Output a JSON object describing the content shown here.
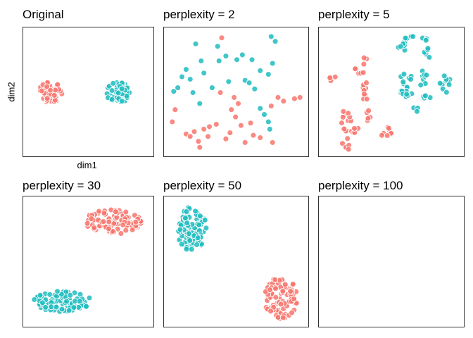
{
  "colors": {
    "group_a": "#F8766D",
    "group_b": "#1FBCC0"
  },
  "chart_data": [
    {
      "type": "scatter",
      "title": "Original",
      "xlabel": "dim1",
      "ylabel": "dim2",
      "xlim": [
        0,
        10
      ],
      "ylim": [
        0,
        10
      ],
      "series": [
        {
          "color": "group_a",
          "clusters": [
            {
              "cx": 1.85,
              "cy": 5.0,
              "rx": 0.95,
              "ry": 0.85,
              "n": 60
            }
          ]
        },
        {
          "color": "group_b",
          "clusters": [
            {
              "cx": 7.3,
              "cy": 5.0,
              "rx": 1.0,
              "ry": 0.9,
              "n": 60
            }
          ]
        }
      ]
    },
    {
      "type": "scatter",
      "title": "perplexity = 2",
      "xlim": [
        0,
        10
      ],
      "ylim": [
        0,
        10
      ],
      "series": [
        {
          "color": "group_a",
          "points": [
            [
              3.9,
              9.5
            ],
            [
              7.5,
              3.9
            ],
            [
              8.0,
              4.6
            ],
            [
              8.4,
              4.3
            ],
            [
              9.6,
              4.6
            ],
            [
              0.5,
              3.6
            ],
            [
              4.6,
              3.6
            ],
            [
              4.9,
              3.0
            ],
            [
              5.3,
              2.3
            ],
            [
              6.0,
              2.5
            ],
            [
              1.3,
              1.6
            ],
            [
              1.9,
              1.8
            ],
            [
              3.0,
              2.2
            ],
            [
              3.5,
              2.4
            ],
            [
              2.2,
              1.0
            ],
            [
              4.2,
              1.2
            ],
            [
              4.5,
              1.7
            ],
            [
              5.6,
              0.9
            ],
            [
              6.7,
              1.3
            ],
            [
              7.6,
              0.9
            ],
            [
              2.3,
              0.5
            ],
            [
              3.8,
              5.0
            ],
            [
              5.1,
              4.1
            ],
            [
              2.9,
              1.4
            ],
            [
              6.2,
              1.5
            ],
            [
              0.3,
              2.6
            ],
            [
              9.2,
              4.5
            ],
            [
              2.6,
              2.0
            ],
            [
              4.8,
              4.6
            ],
            [
              1.6,
              1.4
            ]
          ]
        },
        {
          "color": "group_b",
          "points": [
            [
              2.0,
              9.0
            ],
            [
              3.6,
              8.8
            ],
            [
              7.5,
              9.6
            ],
            [
              7.8,
              9.2
            ],
            [
              2.4,
              7.6
            ],
            [
              3.7,
              7.6
            ],
            [
              5.0,
              7.7
            ],
            [
              6.1,
              7.7
            ],
            [
              1.0,
              6.3
            ],
            [
              1.6,
              6.1
            ],
            [
              2.6,
              6.6
            ],
            [
              5.6,
              6.0
            ],
            [
              7.3,
              6.5
            ],
            [
              7.6,
              7.4
            ],
            [
              0.7,
              5.4
            ],
            [
              3.2,
              5.4
            ],
            [
              4.4,
              5.9
            ],
            [
              5.9,
              5.8
            ],
            [
              1.8,
              5.0
            ],
            [
              2.3,
              4.1
            ],
            [
              6.7,
              3.7
            ],
            [
              7.0,
              3.2
            ],
            [
              7.3,
              2.6
            ],
            [
              0.4,
              5.1
            ],
            [
              4.2,
              8.0
            ],
            [
              5.4,
              8.1
            ],
            [
              6.7,
              6.8
            ],
            [
              6.3,
              5.3
            ],
            [
              1.3,
              6.9
            ],
            [
              7.4,
              2.0
            ]
          ]
        }
      ]
    },
    {
      "type": "scatter",
      "title": "perplexity = 5",
      "xlim": [
        0,
        10
      ],
      "ylim": [
        0,
        10
      ],
      "series": [
        {
          "color": "group_a",
          "clusters": [
            {
              "cx": 0.7,
              "cy": 6.2,
              "rx": 0.35,
              "ry": 0.3,
              "n": 4
            },
            {
              "cx": 2.4,
              "cy": 6.7,
              "rx": 0.6,
              "ry": 0.3,
              "n": 6
            },
            {
              "cx": 3.0,
              "cy": 7.6,
              "rx": 0.2,
              "ry": 0.3,
              "n": 3
            },
            {
              "cx": 3.1,
              "cy": 5.0,
              "rx": 0.3,
              "ry": 1.0,
              "n": 9
            },
            {
              "cx": 3.3,
              "cy": 3.2,
              "rx": 0.25,
              "ry": 0.6,
              "n": 5
            },
            {
              "cx": 1.6,
              "cy": 2.7,
              "rx": 0.45,
              "ry": 0.9,
              "n": 12
            },
            {
              "cx": 2.4,
              "cy": 1.8,
              "rx": 0.45,
              "ry": 0.4,
              "n": 6
            },
            {
              "cx": 1.7,
              "cy": 0.8,
              "rx": 0.4,
              "ry": 0.5,
              "n": 6
            },
            {
              "cx": 4.6,
              "cy": 1.7,
              "rx": 0.45,
              "ry": 0.55,
              "n": 9
            }
          ]
        },
        {
          "color": "group_b",
          "clusters": [
            {
              "cx": 5.7,
              "cy": 8.8,
              "rx": 0.3,
              "ry": 0.7,
              "n": 8
            },
            {
              "cx": 6.3,
              "cy": 9.5,
              "rx": 0.4,
              "ry": 0.2,
              "n": 4
            },
            {
              "cx": 7.3,
              "cy": 9.3,
              "rx": 0.3,
              "ry": 0.2,
              "n": 3
            },
            {
              "cx": 7.6,
              "cy": 8.4,
              "rx": 0.3,
              "ry": 0.6,
              "n": 5
            },
            {
              "cx": 6.0,
              "cy": 6.1,
              "rx": 0.45,
              "ry": 0.7,
              "n": 9
            },
            {
              "cx": 5.6,
              "cy": 5.1,
              "rx": 0.45,
              "ry": 0.3,
              "n": 5
            },
            {
              "cx": 7.2,
              "cy": 6.1,
              "rx": 0.4,
              "ry": 0.7,
              "n": 8
            },
            {
              "cx": 7.5,
              "cy": 4.5,
              "rx": 0.3,
              "ry": 0.4,
              "n": 4
            },
            {
              "cx": 6.7,
              "cy": 3.7,
              "rx": 0.2,
              "ry": 0.3,
              "n": 3
            },
            {
              "cx": 8.9,
              "cy": 5.5,
              "rx": 0.5,
              "ry": 0.9,
              "n": 10
            },
            {
              "cx": 6.3,
              "cy": 4.7,
              "rx": 0.3,
              "ry": 0.3,
              "n": 4
            }
          ]
        }
      ]
    },
    {
      "type": "scatter",
      "title": "perplexity = 30",
      "xlim": [
        0,
        10
      ],
      "ylim": [
        0,
        10
      ],
      "series": [
        {
          "color": "group_a",
          "clusters": [
            {
              "cx": 7.0,
              "cy": 8.3,
              "rx": 2.3,
              "ry": 1.0,
              "n": 90
            }
          ]
        },
        {
          "color": "group_b",
          "clusters": [
            {
              "cx": 2.8,
              "cy": 1.8,
              "rx": 2.4,
              "ry": 0.85,
              "n": 90
            }
          ]
        }
      ]
    },
    {
      "type": "scatter",
      "title": "perplexity = 50",
      "xlim": [
        0,
        10
      ],
      "ylim": [
        0,
        10
      ],
      "series": [
        {
          "color": "group_a",
          "clusters": [
            {
              "cx": 8.2,
              "cy": 2.1,
              "rx": 1.2,
              "ry": 1.7,
              "n": 90
            }
          ]
        },
        {
          "color": "group_b",
          "clusters": [
            {
              "cx": 1.7,
              "cy": 7.7,
              "rx": 1.1,
              "ry": 1.8,
              "n": 90
            }
          ]
        }
      ]
    },
    {
      "type": "scatter",
      "title": "perplexity = 100",
      "xlim": [
        0,
        10
      ],
      "ylim": [
        0,
        10
      ],
      "series": []
    }
  ]
}
